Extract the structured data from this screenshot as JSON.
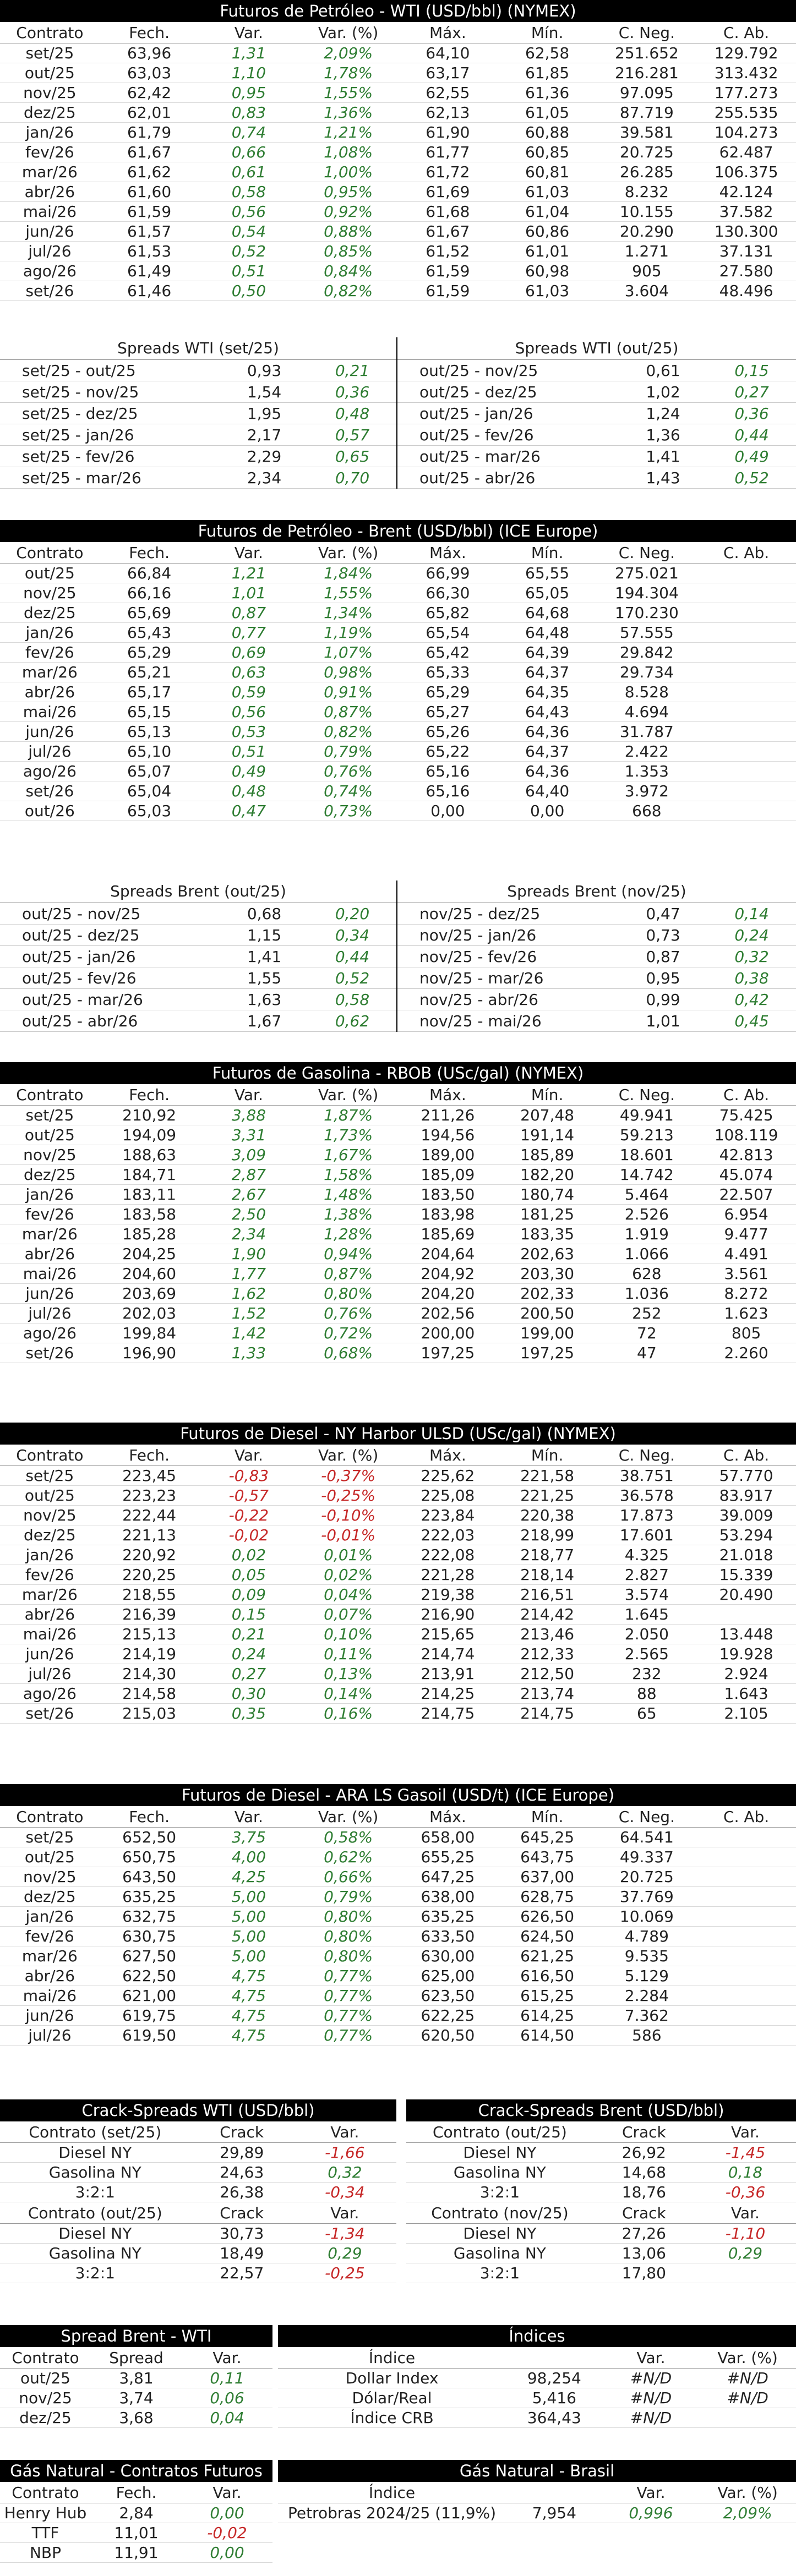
{
  "cols": [
    "Contrato",
    "Fech.",
    "Var.",
    "Var. (%)",
    "Máx.",
    "Mín.",
    "C. Neg.",
    "C. Ab."
  ],
  "wti": {
    "title": "Futuros de Petróleo - WTI (USD/bbl) (NYMEX)",
    "rows": [
      [
        "set/25",
        "63,96",
        "1,31",
        "2,09%",
        "64,10",
        "62,58",
        "251.652",
        "129.792"
      ],
      [
        "out/25",
        "63,03",
        "1,10",
        "1,78%",
        "63,17",
        "61,85",
        "216.281",
        "313.432"
      ],
      [
        "nov/25",
        "62,42",
        "0,95",
        "1,55%",
        "62,55",
        "61,36",
        "97.095",
        "177.273"
      ],
      [
        "dez/25",
        "62,01",
        "0,83",
        "1,36%",
        "62,13",
        "61,05",
        "87.719",
        "255.535"
      ],
      [
        "jan/26",
        "61,79",
        "0,74",
        "1,21%",
        "61,90",
        "60,88",
        "39.581",
        "104.273"
      ],
      [
        "fev/26",
        "61,67",
        "0,66",
        "1,08%",
        "61,77",
        "60,85",
        "20.725",
        "62.487"
      ],
      [
        "mar/26",
        "61,62",
        "0,61",
        "1,00%",
        "61,72",
        "60,81",
        "26.285",
        "106.375"
      ],
      [
        "abr/26",
        "61,60",
        "0,58",
        "0,95%",
        "61,69",
        "61,03",
        "8.232",
        "42.124"
      ],
      [
        "mai/26",
        "61,59",
        "0,56",
        "0,92%",
        "61,68",
        "61,04",
        "10.155",
        "37.582"
      ],
      [
        "jun/26",
        "61,57",
        "0,54",
        "0,88%",
        "61,67",
        "60,86",
        "20.290",
        "130.300"
      ],
      [
        "jul/26",
        "61,53",
        "0,52",
        "0,85%",
        "61,52",
        "61,01",
        "1.271",
        "37.131"
      ],
      [
        "ago/26",
        "61,49",
        "0,51",
        "0,84%",
        "61,59",
        "60,98",
        "905",
        "27.580"
      ],
      [
        "set/26",
        "61,46",
        "0,50",
        "0,82%",
        "61,59",
        "61,03",
        "3.604",
        "48.496"
      ]
    ],
    "spread_left_title": "Spreads WTI (set/25)",
    "spread_left": [
      [
        "set/25 - out/25",
        "0,93",
        "0,21"
      ],
      [
        "set/25 - nov/25",
        "1,54",
        "0,36"
      ],
      [
        "set/25 - dez/25",
        "1,95",
        "0,48"
      ],
      [
        "set/25 - jan/26",
        "2,17",
        "0,57"
      ],
      [
        "set/25 - fev/26",
        "2,29",
        "0,65"
      ],
      [
        "set/25 - mar/26",
        "2,34",
        "0,70"
      ]
    ],
    "spread_right_title": "Spreads WTI (out/25)",
    "spread_right": [
      [
        "out/25 - nov/25",
        "0,61",
        "0,15"
      ],
      [
        "out/25 - dez/25",
        "1,02",
        "0,27"
      ],
      [
        "out/25 - jan/26",
        "1,24",
        "0,36"
      ],
      [
        "out/25 - fev/26",
        "1,36",
        "0,44"
      ],
      [
        "out/25 - mar/26",
        "1,41",
        "0,49"
      ],
      [
        "out/25 - abr/26",
        "1,43",
        "0,52"
      ]
    ]
  },
  "brent": {
    "title": "Futuros de Petróleo - Brent (USD/bbl) (ICE Europe)",
    "rows": [
      [
        "out/25",
        "66,84",
        "1,21",
        "1,84%",
        "66,99",
        "65,55",
        "275.021",
        ""
      ],
      [
        "nov/25",
        "66,16",
        "1,01",
        "1,55%",
        "66,30",
        "65,05",
        "194.304",
        ""
      ],
      [
        "dez/25",
        "65,69",
        "0,87",
        "1,34%",
        "65,82",
        "64,68",
        "170.230",
        ""
      ],
      [
        "jan/26",
        "65,43",
        "0,77",
        "1,19%",
        "65,54",
        "64,48",
        "57.555",
        ""
      ],
      [
        "fev/26",
        "65,29",
        "0,69",
        "1,07%",
        "65,42",
        "64,39",
        "29.842",
        ""
      ],
      [
        "mar/26",
        "65,21",
        "0,63",
        "0,98%",
        "65,33",
        "64,37",
        "29.734",
        ""
      ],
      [
        "abr/26",
        "65,17",
        "0,59",
        "0,91%",
        "65,29",
        "64,35",
        "8.528",
        ""
      ],
      [
        "mai/26",
        "65,15",
        "0,56",
        "0,87%",
        "65,27",
        "64,43",
        "4.694",
        ""
      ],
      [
        "jun/26",
        "65,13",
        "0,53",
        "0,82%",
        "65,26",
        "64,36",
        "31.787",
        ""
      ],
      [
        "jul/26",
        "65,10",
        "0,51",
        "0,79%",
        "65,22",
        "64,37",
        "2.422",
        ""
      ],
      [
        "ago/26",
        "65,07",
        "0,49",
        "0,76%",
        "65,16",
        "64,36",
        "1.353",
        ""
      ],
      [
        "set/26",
        "65,04",
        "0,48",
        "0,74%",
        "65,16",
        "64,40",
        "3.972",
        ""
      ],
      [
        "out/26",
        "65,03",
        "0,47",
        "0,73%",
        "0,00",
        "0,00",
        "668",
        ""
      ]
    ],
    "spread_left_title": "Spreads Brent (out/25)",
    "spread_left": [
      [
        "out/25 - nov/25",
        "0,68",
        "0,20"
      ],
      [
        "out/25 - dez/25",
        "1,15",
        "0,34"
      ],
      [
        "out/25 - jan/26",
        "1,41",
        "0,44"
      ],
      [
        "out/25 - fev/26",
        "1,55",
        "0,52"
      ],
      [
        "out/25 - mar/26",
        "1,63",
        "0,58"
      ],
      [
        "out/25 - abr/26",
        "1,67",
        "0,62"
      ]
    ],
    "spread_right_title": "Spreads Brent (nov/25)",
    "spread_right": [
      [
        "nov/25 - dez/25",
        "0,47",
        "0,14"
      ],
      [
        "nov/25 - jan/26",
        "0,73",
        "0,24"
      ],
      [
        "nov/25 - fev/26",
        "0,87",
        "0,32"
      ],
      [
        "nov/25 - mar/26",
        "0,95",
        "0,38"
      ],
      [
        "nov/25 - abr/26",
        "0,99",
        "0,42"
      ],
      [
        "nov/25 - mai/26",
        "1,01",
        "0,45"
      ]
    ]
  },
  "rbob": {
    "title": "Futuros de Gasolina - RBOB (USc/gal) (NYMEX)",
    "rows": [
      [
        "set/25",
        "210,92",
        "3,88",
        "1,87%",
        "211,26",
        "207,48",
        "49.941",
        "75.425"
      ],
      [
        "out/25",
        "194,09",
        "3,31",
        "1,73%",
        "194,56",
        "191,14",
        "59.213",
        "108.119"
      ],
      [
        "nov/25",
        "188,63",
        "3,09",
        "1,67%",
        "189,00",
        "185,89",
        "18.601",
        "42.813"
      ],
      [
        "dez/25",
        "184,71",
        "2,87",
        "1,58%",
        "185,09",
        "182,20",
        "14.742",
        "45.074"
      ],
      [
        "jan/26",
        "183,11",
        "2,67",
        "1,48%",
        "183,50",
        "180,74",
        "5.464",
        "22.507"
      ],
      [
        "fev/26",
        "183,58",
        "2,50",
        "1,38%",
        "183,98",
        "181,25",
        "2.526",
        "6.954"
      ],
      [
        "mar/26",
        "185,28",
        "2,34",
        "1,28%",
        "185,69",
        "183,35",
        "1.919",
        "9.477"
      ],
      [
        "abr/26",
        "204,25",
        "1,90",
        "0,94%",
        "204,64",
        "202,63",
        "1.066",
        "4.491"
      ],
      [
        "mai/26",
        "204,60",
        "1,77",
        "0,87%",
        "204,92",
        "203,30",
        "628",
        "3.561"
      ],
      [
        "jun/26",
        "203,69",
        "1,62",
        "0,80%",
        "204,20",
        "202,33",
        "1.036",
        "8.272"
      ],
      [
        "jul/26",
        "202,03",
        "1,52",
        "0,76%",
        "202,56",
        "200,50",
        "252",
        "1.623"
      ],
      [
        "ago/26",
        "199,84",
        "1,42",
        "0,72%",
        "200,00",
        "199,00",
        "72",
        "805"
      ],
      [
        "set/26",
        "196,90",
        "1,33",
        "0,68%",
        "197,25",
        "197,25",
        "47",
        "2.260"
      ]
    ]
  },
  "ulsd": {
    "title": "Futuros de Diesel - NY Harbor ULSD (USc/gal) (NYMEX)",
    "rows": [
      [
        "set/25",
        "223,45",
        "-0,83",
        "-0,37%",
        "225,62",
        "221,58",
        "38.751",
        "57.770"
      ],
      [
        "out/25",
        "223,23",
        "-0,57",
        "-0,25%",
        "225,08",
        "221,25",
        "36.578",
        "83.917"
      ],
      [
        "nov/25",
        "222,44",
        "-0,22",
        "-0,10%",
        "223,84",
        "220,38",
        "17.873",
        "39.009"
      ],
      [
        "dez/25",
        "221,13",
        "-0,02",
        "-0,01%",
        "222,03",
        "218,99",
        "17.601",
        "53.294"
      ],
      [
        "jan/26",
        "220,92",
        "0,02",
        "0,01%",
        "222,08",
        "218,77",
        "4.325",
        "21.018"
      ],
      [
        "fev/26",
        "220,25",
        "0,05",
        "0,02%",
        "221,28",
        "218,14",
        "2.827",
        "15.339"
      ],
      [
        "mar/26",
        "218,55",
        "0,09",
        "0,04%",
        "219,38",
        "216,51",
        "3.574",
        "20.490"
      ],
      [
        "abr/26",
        "216,39",
        "0,15",
        "0,07%",
        "216,90",
        "214,42",
        "1.645",
        ""
      ],
      [
        "mai/26",
        "215,13",
        "0,21",
        "0,10%",
        "215,65",
        "213,46",
        "2.050",
        "13.448"
      ],
      [
        "jun/26",
        "214,19",
        "0,24",
        "0,11%",
        "214,74",
        "212,33",
        "2.565",
        "19.928"
      ],
      [
        "jul/26",
        "214,30",
        "0,27",
        "0,13%",
        "213,91",
        "212,50",
        "232",
        "2.924"
      ],
      [
        "ago/26",
        "214,58",
        "0,30",
        "0,14%",
        "214,25",
        "213,74",
        "88",
        "1.643"
      ],
      [
        "set/26",
        "215,03",
        "0,35",
        "0,16%",
        "214,75",
        "214,75",
        "65",
        "2.105"
      ]
    ]
  },
  "gasoil": {
    "title": "Futuros de Diesel - ARA LS Gasoil (USD/t) (ICE Europe)",
    "rows": [
      [
        "set/25",
        "652,50",
        "3,75",
        "0,58%",
        "658,00",
        "645,25",
        "64.541",
        ""
      ],
      [
        "out/25",
        "650,75",
        "4,00",
        "0,62%",
        "655,25",
        "643,75",
        "49.337",
        ""
      ],
      [
        "nov/25",
        "643,50",
        "4,25",
        "0,66%",
        "647,25",
        "637,00",
        "20.725",
        ""
      ],
      [
        "dez/25",
        "635,25",
        "5,00",
        "0,79%",
        "638,00",
        "628,75",
        "37.769",
        ""
      ],
      [
        "jan/26",
        "632,75",
        "5,00",
        "0,80%",
        "635,25",
        "626,50",
        "10.069",
        ""
      ],
      [
        "fev/26",
        "630,75",
        "5,00",
        "0,80%",
        "633,50",
        "624,50",
        "4.789",
        ""
      ],
      [
        "mar/26",
        "627,50",
        "5,00",
        "0,80%",
        "630,00",
        "621,25",
        "9.535",
        ""
      ],
      [
        "abr/26",
        "622,50",
        "4,75",
        "0,77%",
        "625,00",
        "616,50",
        "5.129",
        ""
      ],
      [
        "mai/26",
        "621,00",
        "4,75",
        "0,77%",
        "623,50",
        "615,25",
        "2.284",
        ""
      ],
      [
        "jun/26",
        "619,75",
        "4,75",
        "0,77%",
        "622,25",
        "614,25",
        "7.362",
        ""
      ],
      [
        "jul/26",
        "619,50",
        "4,75",
        "0,77%",
        "620,50",
        "614,50",
        "586",
        ""
      ]
    ]
  },
  "crack_wti": {
    "title": "Crack-Spreads WTI (USD/bbl)",
    "blocks": [
      {
        "head": [
          "Contrato (set/25)",
          "Crack",
          "Var."
        ],
        "rows": [
          [
            "Diesel NY",
            "29,89",
            "-1,66"
          ],
          [
            "Gasolina NY",
            "24,63",
            "0,32"
          ],
          [
            "3:2:1",
            "26,38",
            "-0,34"
          ]
        ]
      },
      {
        "head": [
          "Contrato (out/25)",
          "Crack",
          "Var."
        ],
        "rows": [
          [
            "Diesel NY",
            "30,73",
            "-1,34"
          ],
          [
            "Gasolina NY",
            "18,49",
            "0,29"
          ],
          [
            "3:2:1",
            "22,57",
            "-0,25"
          ]
        ]
      }
    ]
  },
  "crack_brent": {
    "title": "Crack-Spreads Brent (USD/bbl)",
    "blocks": [
      {
        "head": [
          "Contrato (out/25)",
          "Crack",
          "Var."
        ],
        "rows": [
          [
            "Diesel NY",
            "26,92",
            "-1,45"
          ],
          [
            "Gasolina NY",
            "14,68",
            "0,18"
          ],
          [
            "3:2:1",
            "18,76",
            "-0,36"
          ]
        ]
      },
      {
        "head": [
          "Contrato (nov/25)",
          "Crack",
          "Var."
        ],
        "rows": [
          [
            "Diesel NY",
            "27,26",
            "-1,10"
          ],
          [
            "Gasolina NY",
            "13,06",
            "0,29"
          ],
          [
            "3:2:1",
            "17,80",
            ""
          ]
        ]
      }
    ]
  },
  "spread_bw": {
    "title": "Spread Brent - WTI",
    "head": [
      "Contrato",
      "Spread",
      "Var."
    ],
    "rows": [
      [
        "out/25",
        "3,81",
        "0,11"
      ],
      [
        "nov/25",
        "3,74",
        "0,06"
      ],
      [
        "dez/25",
        "3,68",
        "0,04"
      ]
    ]
  },
  "indices": {
    "title": "Índices",
    "head": [
      "Índice",
      "",
      "Var.",
      "Var. (%)"
    ],
    "rows": [
      [
        "Dollar Index",
        "98,254",
        "#N/D",
        "#N/D"
      ],
      [
        "Dólar/Real",
        "5,416",
        "#N/D",
        "#N/D"
      ],
      [
        "Índice CRB",
        "364,43",
        "#N/D",
        ""
      ]
    ]
  },
  "gas_fut": {
    "title": "Gás Natural - Contratos Futuros",
    "head": [
      "Contrato",
      "Fech.",
      "Var."
    ],
    "rows": [
      [
        "Henry Hub",
        "2,84",
        "0,00"
      ],
      [
        "TTF",
        "11,01",
        "-0,02"
      ],
      [
        "NBP",
        "11,91",
        "0,00"
      ]
    ]
  },
  "gas_br": {
    "title": "Gás Natural - Brasil",
    "head": [
      "Índice",
      "",
      "Var.",
      "Var. (%)"
    ],
    "rows": [
      [
        "Petrobras 2024/25 (11,9%)",
        "7,954",
        "0,996",
        "2,09%"
      ]
    ]
  }
}
